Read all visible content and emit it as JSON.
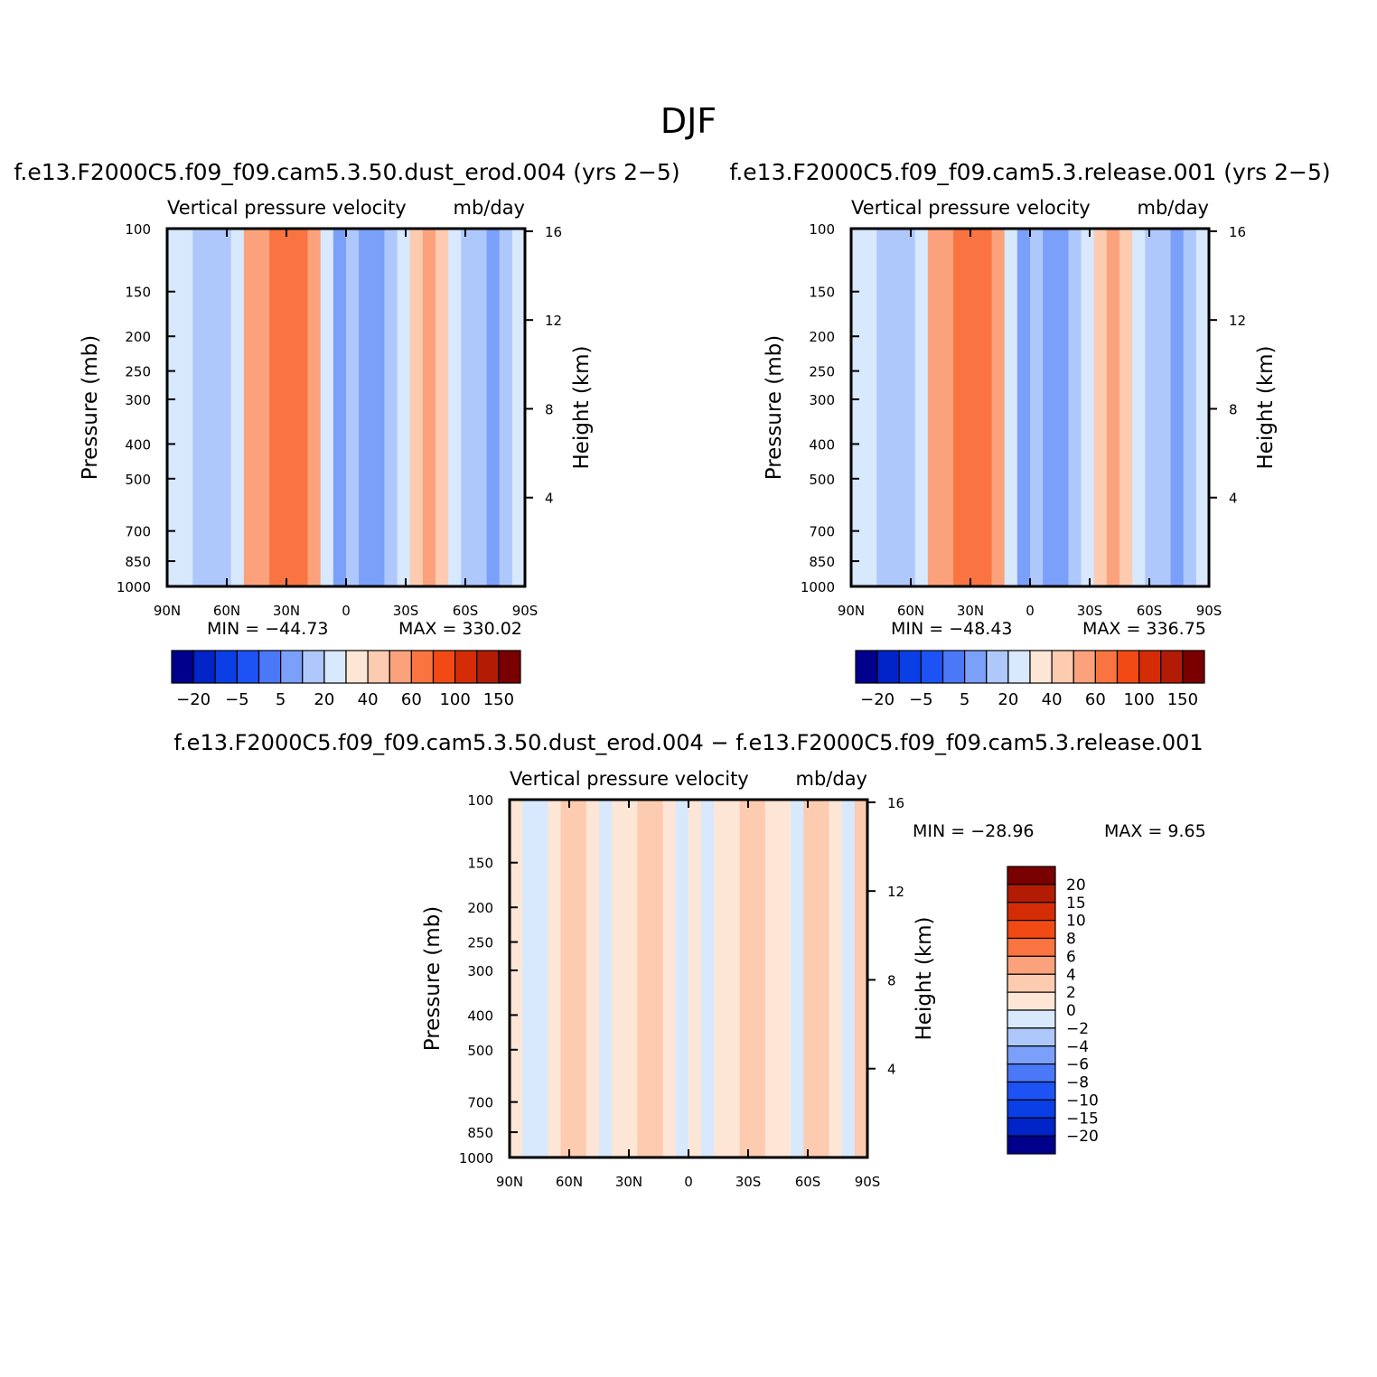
{
  "figure": {
    "title": "DJF",
    "case1_title": "f.e13.F2000C5.f09_f09.cam5.3.50.dust_erod.004 (yrs 2−5)",
    "case2_title": "f.e13.F2000C5.f09_f09.cam5.3.release.001 (yrs 2−5)",
    "diff_title": "f.e13.F2000C5.f09_f09.cam5.3.50.dust_erod.004 − f.e13.F2000C5.f09_f09.cam5.3.release.001"
  },
  "chart_data": [
    {
      "type": "heatmap",
      "name": "case1",
      "title": "Vertical pressure velocity",
      "units": "mb/day",
      "ylabel": "Pressure (mb)",
      "ylabel_right": "Height (km)",
      "x_ticks": [
        "90N",
        "60N",
        "30N",
        "0",
        "30S",
        "60S",
        "90S"
      ],
      "x_values": [
        90,
        60,
        30,
        0,
        -30,
        -60,
        -90
      ],
      "y_ticks": [
        100,
        150,
        200,
        250,
        300,
        400,
        500,
        700,
        850,
        1000
      ],
      "y_scale": "log",
      "ylim": [
        1000,
        100
      ],
      "height_ticks_km": [
        16,
        12,
        8,
        4
      ],
      "min_label": "MIN = −44.73",
      "max_label": "MAX = 330.02",
      "min": -44.73,
      "max": 330.02,
      "column_levels": [
        -1,
        -1,
        -2,
        -2,
        -2,
        -1,
        2,
        2,
        3,
        3,
        3,
        2,
        -1,
        -3,
        -2,
        -3,
        -3,
        -2,
        -1,
        1,
        2,
        1,
        -1,
        -2,
        -2,
        -3,
        -2,
        -1
      ],
      "colorbar_labels": [
        "−20",
        "−5",
        "5",
        "20",
        "40",
        "60",
        "100",
        "150"
      ],
      "colorbar_colors": [
        "#00008c",
        "#0024c8",
        "#0a3fe6",
        "#1d53f4",
        "#4a78f7",
        "#7aa0f9",
        "#aec8fb",
        "#d8e8fd",
        "#fde6d6",
        "#fccbb0",
        "#fba27c",
        "#f97440",
        "#f14a14",
        "#d42c06",
        "#b21c05",
        "#7a0000"
      ]
    },
    {
      "type": "heatmap",
      "name": "case2",
      "title": "Vertical pressure velocity",
      "units": "mb/day",
      "ylabel": "Pressure (mb)",
      "ylabel_right": "Height (km)",
      "x_ticks": [
        "90N",
        "60N",
        "30N",
        "0",
        "30S",
        "60S",
        "90S"
      ],
      "x_values": [
        90,
        60,
        30,
        0,
        -30,
        -60,
        -90
      ],
      "y_ticks": [
        100,
        150,
        200,
        250,
        300,
        400,
        500,
        700,
        850,
        1000
      ],
      "y_scale": "log",
      "ylim": [
        1000,
        100
      ],
      "height_ticks_km": [
        16,
        12,
        8,
        4
      ],
      "min_label": "MIN = −48.43",
      "max_label": "MAX = 336.75",
      "min": -48.43,
      "max": 336.75,
      "column_levels": [
        -1,
        -1,
        -2,
        -2,
        -2,
        -1,
        2,
        2,
        3,
        3,
        3,
        2,
        -1,
        -3,
        -2,
        -3,
        -3,
        -2,
        -1,
        1,
        2,
        1,
        -1,
        -2,
        -2,
        -3,
        -2,
        -1
      ],
      "colorbar_labels": [
        "−20",
        "−5",
        "5",
        "20",
        "40",
        "60",
        "100",
        "150"
      ],
      "colorbar_colors": [
        "#00008c",
        "#0024c8",
        "#0a3fe6",
        "#1d53f4",
        "#4a78f7",
        "#7aa0f9",
        "#aec8fb",
        "#d8e8fd",
        "#fde6d6",
        "#fccbb0",
        "#fba27c",
        "#f97440",
        "#f14a14",
        "#d42c06",
        "#b21c05",
        "#7a0000"
      ]
    },
    {
      "type": "heatmap",
      "name": "difference",
      "title": "Vertical pressure velocity",
      "units": "mb/day",
      "ylabel": "Pressure (mb)",
      "ylabel_right": "Height (km)",
      "x_ticks": [
        "90N",
        "60N",
        "30N",
        "0",
        "30S",
        "60S",
        "90S"
      ],
      "x_values": [
        90,
        60,
        30,
        0,
        -30,
        -60,
        -90
      ],
      "y_ticks": [
        100,
        150,
        200,
        250,
        300,
        400,
        500,
        700,
        850,
        1000
      ],
      "y_scale": "log",
      "ylim": [
        1000,
        100
      ],
      "height_ticks_km": [
        16,
        12,
        8,
        4
      ],
      "min_label": "MIN = −28.96",
      "max_label": "MAX =    9.65",
      "min": -28.96,
      "max": 9.65,
      "column_levels": [
        0,
        -1,
        -1,
        0,
        1,
        1,
        0,
        -1,
        0,
        0,
        1,
        1,
        0,
        -1,
        0,
        -1,
        0,
        0,
        1,
        1,
        0,
        0,
        -1,
        1,
        1,
        0,
        -1,
        1
      ],
      "colorbar_labels": [
        "20",
        "15",
        "10",
        "8",
        "6",
        "4",
        "2",
        "0",
        "−2",
        "−4",
        "−6",
        "−8",
        "−10",
        "−15",
        "−20"
      ],
      "colorbar_colors": [
        "#7a0000",
        "#b21c05",
        "#d42c06",
        "#f14a14",
        "#f97440",
        "#fba27c",
        "#fccbb0",
        "#fde6d6",
        "#d8e8fd",
        "#aec8fb",
        "#7aa0f9",
        "#4a78f7",
        "#1d53f4",
        "#0a3fe6",
        "#0024c8",
        "#00008c"
      ]
    }
  ]
}
